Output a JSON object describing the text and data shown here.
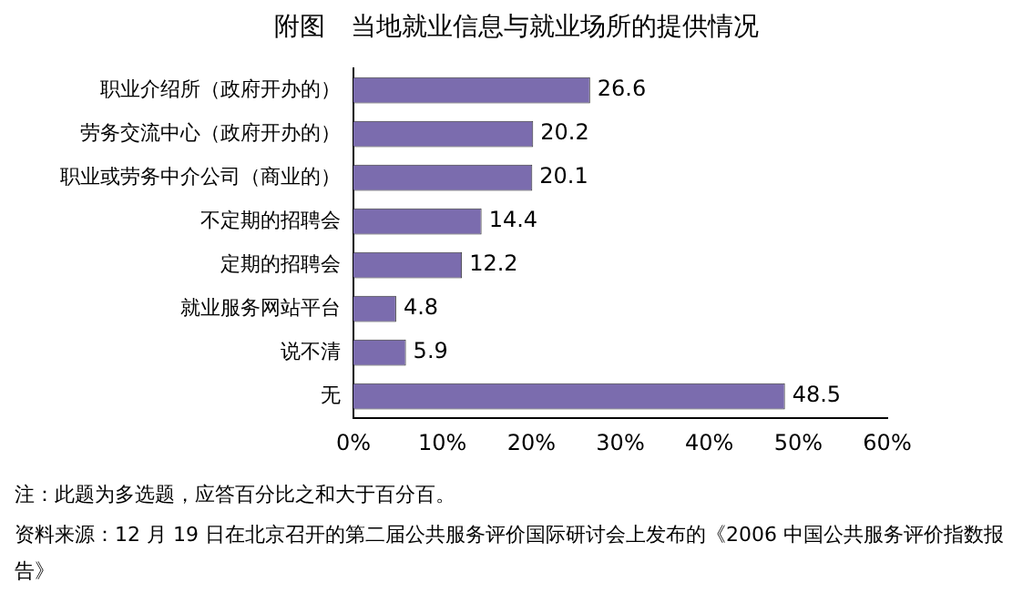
{
  "chart_data": {
    "type": "bar",
    "orientation": "horizontal",
    "title": "附图　当地就业信息与就业场所的提供情况",
    "categories": [
      "职业介绍所（政府开办的）",
      "劳务交流中心（政府开办的）",
      "职业或劳务中介公司（商业的）",
      "不定期的招聘会",
      "定期的招聘会",
      "就业服务网站平台",
      "说不清",
      "无"
    ],
    "values": [
      26.6,
      20.2,
      20.1,
      14.4,
      12.2,
      4.8,
      5.9,
      48.5
    ],
    "color": "#7b6cae",
    "xlim": [
      0,
      60
    ],
    "xticks": [
      {
        "value": 0,
        "label": "0%"
      },
      {
        "value": 10,
        "label": "10%"
      },
      {
        "value": 20,
        "label": "20%"
      },
      {
        "value": 30,
        "label": "30%"
      },
      {
        "value": 40,
        "label": "40%"
      },
      {
        "value": 50,
        "label": "50%"
      },
      {
        "value": 60,
        "label": "60%"
      }
    ],
    "grid": false,
    "legend": false,
    "data_labels": true,
    "annotations": [
      "注：此题为多选题，应答百分比之和大于百分百。",
      "资料来源：12 月 19 日在北京召开的第二届公共服务评价国际研讨会上发布的《2006 中国公共服务评价指数报告》"
    ]
  }
}
